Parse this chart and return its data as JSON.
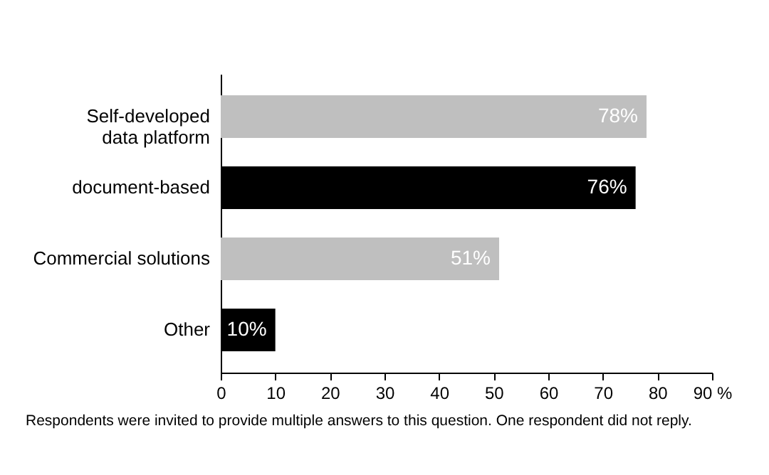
{
  "chart_data": {
    "type": "bar",
    "orientation": "horizontal",
    "categories": [
      "Self-developed\ndata platform",
      "document-based",
      "Commercial solutions",
      "Other"
    ],
    "values": [
      78,
      76,
      51,
      10
    ],
    "colors": [
      "#bfbfbf",
      "#000000",
      "#bfbfbf",
      "#000000"
    ],
    "value_labels": [
      "78%",
      "76%",
      "51%",
      "10%"
    ],
    "xlim": [
      0,
      90
    ],
    "xticks": [
      0,
      10,
      20,
      30,
      40,
      50,
      60,
      70,
      80,
      {
        "value": 90,
        "label": "90 %"
      }
    ],
    "grid": false,
    "annotations": [
      "Respondents were invited to provide multiple answers to this question. One respondent did not reply."
    ]
  }
}
